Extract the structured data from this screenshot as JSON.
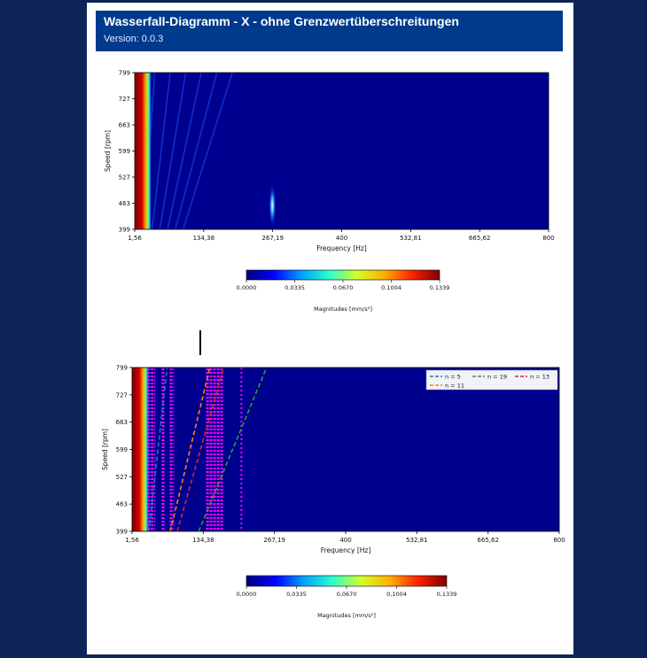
{
  "header": {
    "title": "Wasserfall-Diagramm - X - ohne Grenzwertüberschreitungen",
    "version": "Version: 0.0.3"
  },
  "colors": {
    "page_background": "#0d2456",
    "header_background": "#003a8c",
    "colormap": [
      "#00007f",
      "#0000ff",
      "#00a0ff",
      "#2affd0",
      "#d4ff2a",
      "#ffb000",
      "#ff2000",
      "#7f0000"
    ],
    "order_lines": {
      "n = 5": "#1f77b4",
      "n = 19": "#2ca02c",
      "n = 13": "#d62728",
      "n = 11": "#ff7f0e"
    },
    "limit_markers": "#ff00ff"
  },
  "chart_data": [
    {
      "type": "heatmap",
      "chart": "waterfall-top",
      "xlabel": "Frequency [Hz]",
      "ylabel": "Speed [rpm]",
      "xlim": [
        1.56,
        800
      ],
      "ylim": [
        399,
        799
      ],
      "xticks": [
        "1,56",
        "134,38",
        "267,19",
        "400",
        "532,81",
        "665,62",
        "800"
      ],
      "yticks": [
        "399",
        "463",
        "527",
        "599",
        "663",
        "727",
        "799"
      ],
      "features": [
        {
          "kind": "strong-low-frequency-band",
          "freq_range": [
            1.56,
            12
          ],
          "speed_range": [
            399,
            799
          ]
        },
        {
          "kind": "peak",
          "frequency": 267.19,
          "speed_range": [
            420,
            500
          ]
        },
        {
          "kind": "diagonal-orders",
          "count": 6,
          "start_freq": 20,
          "end_freq": 200
        }
      ],
      "colorbar": {
        "label": "Magnitudes [mm/s²]",
        "ticks": [
          "0.0000",
          "0.0335",
          "0.0670",
          "0.1004",
          "0.1339"
        ],
        "range": [
          0,
          0.1339
        ]
      }
    },
    {
      "type": "heatmap",
      "chart": "waterfall-bottom",
      "xlabel": "Frequency [Hz]",
      "ylabel": "Speed [rpm]",
      "xlim": [
        1.56,
        800
      ],
      "ylim": [
        399,
        799
      ],
      "xticks": [
        "1,56",
        "134,38",
        "267,19",
        "400",
        "532,81",
        "665,62",
        "800"
      ],
      "yticks": [
        "399",
        "463",
        "527",
        "599",
        "663",
        "727",
        "799"
      ],
      "legend": [
        "n = 5",
        "n = 19",
        "n = 13",
        "n = 11"
      ],
      "legend_position": "top-right",
      "order_lines": [
        {
          "name": "n = 5",
          "start_freq": 33,
          "end_freq": 67
        },
        {
          "name": "n = 11",
          "start_freq": 73,
          "end_freq": 147
        },
        {
          "name": "n = 13",
          "start_freq": 86,
          "end_freq": 173
        },
        {
          "name": "n = 19",
          "start_freq": 126,
          "end_freq": 253
        }
      ],
      "limit_bands": [
        {
          "freq_range": [
            30,
            45
          ],
          "style": "hatched"
        },
        {
          "freq_range": [
            57,
            63
          ],
          "style": "hatched"
        },
        {
          "freq_range": [
            72,
            80
          ],
          "style": "hatched"
        },
        {
          "freq_range": [
            140,
            172
          ],
          "style": "hatched"
        },
        {
          "freq_range": [
            205,
            207
          ],
          "style": "dotted"
        }
      ],
      "colorbar": {
        "label": "Magnitudes [mm/s²]",
        "ticks": [
          "0,0000",
          "0,0335",
          "0,0670",
          "0,1004",
          "0,1339"
        ],
        "range": [
          0,
          0.1339
        ]
      }
    }
  ]
}
